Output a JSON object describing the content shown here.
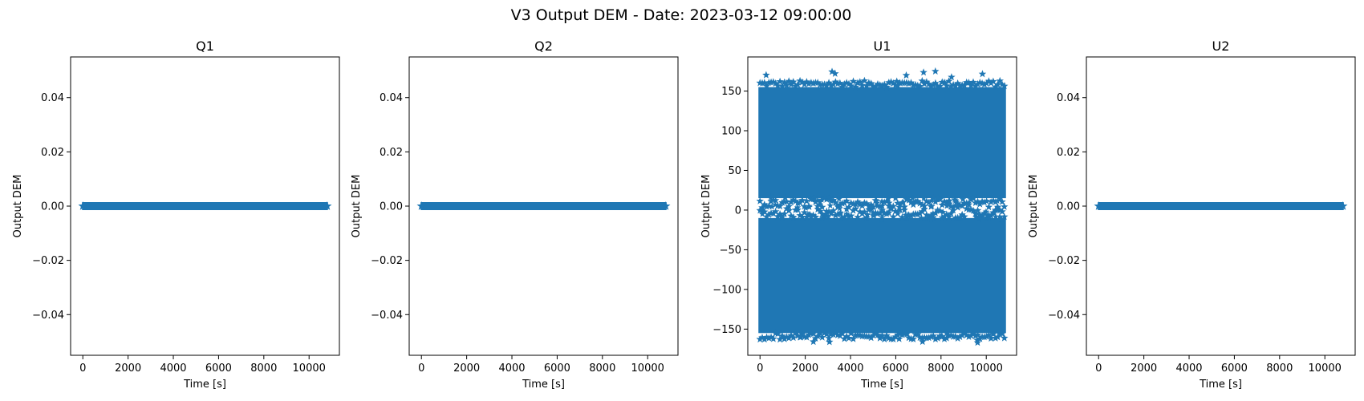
{
  "figure": {
    "suptitle": "V3 Output DEM - Date: 2023-03-12 09:00:00"
  },
  "colors": {
    "series": "#1f77b4",
    "axes": "#000000",
    "background": "#ffffff"
  },
  "chart_data": [
    {
      "type": "scatter",
      "title": "Q1",
      "xlabel": "Time [s]",
      "ylabel": "Output DEM",
      "marker": "star",
      "xlim": [
        -540,
        11340
      ],
      "ylim": [
        -0.055,
        0.055
      ],
      "xticks": [
        0,
        2000,
        4000,
        6000,
        8000,
        10000
      ],
      "yticks": [
        -0.04,
        -0.02,
        0.0,
        0.02,
        0.04
      ],
      "ytick_labels": [
        "−0.04",
        "−0.02",
        "0.00",
        "0.02",
        "0.04"
      ],
      "grid": false,
      "series": [
        {
          "x_range": [
            0,
            10800
          ],
          "y_constant": 0.0
        }
      ]
    },
    {
      "type": "scatter",
      "title": "Q2",
      "xlabel": "Time [s]",
      "ylabel": "Output DEM",
      "marker": "star",
      "xlim": [
        -540,
        11340
      ],
      "ylim": [
        -0.055,
        0.055
      ],
      "xticks": [
        0,
        2000,
        4000,
        6000,
        8000,
        10000
      ],
      "yticks": [
        -0.04,
        -0.02,
        0.0,
        0.02,
        0.04
      ],
      "ytick_labels": [
        "−0.04",
        "−0.02",
        "0.00",
        "0.02",
        "0.04"
      ],
      "grid": false,
      "series": [
        {
          "x_range": [
            0,
            10800
          ],
          "y_constant": 0.0
        }
      ]
    },
    {
      "type": "scatter",
      "title": "U1",
      "xlabel": "Time [s]",
      "ylabel": "Output DEM",
      "marker": "star",
      "xlim": [
        -540,
        11340
      ],
      "ylim": [
        -183,
        193
      ],
      "xticks": [
        0,
        2000,
        4000,
        6000,
        8000,
        10000
      ],
      "yticks": [
        -150,
        -100,
        -50,
        0,
        50,
        100,
        150
      ],
      "ytick_labels": [
        "−150",
        "−100",
        "−50",
        "0",
        "50",
        "100",
        "150"
      ],
      "grid": false,
      "series": [
        {
          "x_range": [
            0,
            10800
          ],
          "y_band": [
            15,
            155
          ],
          "peak": 175
        },
        {
          "x_range": [
            0,
            10800
          ],
          "y_band": [
            -155,
            -10
          ],
          "peak": -167
        }
      ]
    },
    {
      "type": "scatter",
      "title": "U2",
      "xlabel": "Time [s]",
      "ylabel": "Output DEM",
      "marker": "star",
      "xlim": [
        -540,
        11340
      ],
      "ylim": [
        -0.055,
        0.055
      ],
      "xticks": [
        0,
        2000,
        4000,
        6000,
        8000,
        10000
      ],
      "yticks": [
        -0.04,
        -0.02,
        0.0,
        0.02,
        0.04
      ],
      "ytick_labels": [
        "−0.04",
        "−0.02",
        "0.00",
        "0.02",
        "0.04"
      ],
      "grid": false,
      "series": [
        {
          "x_range": [
            0,
            10800
          ],
          "y_constant": 0.0
        }
      ]
    }
  ]
}
